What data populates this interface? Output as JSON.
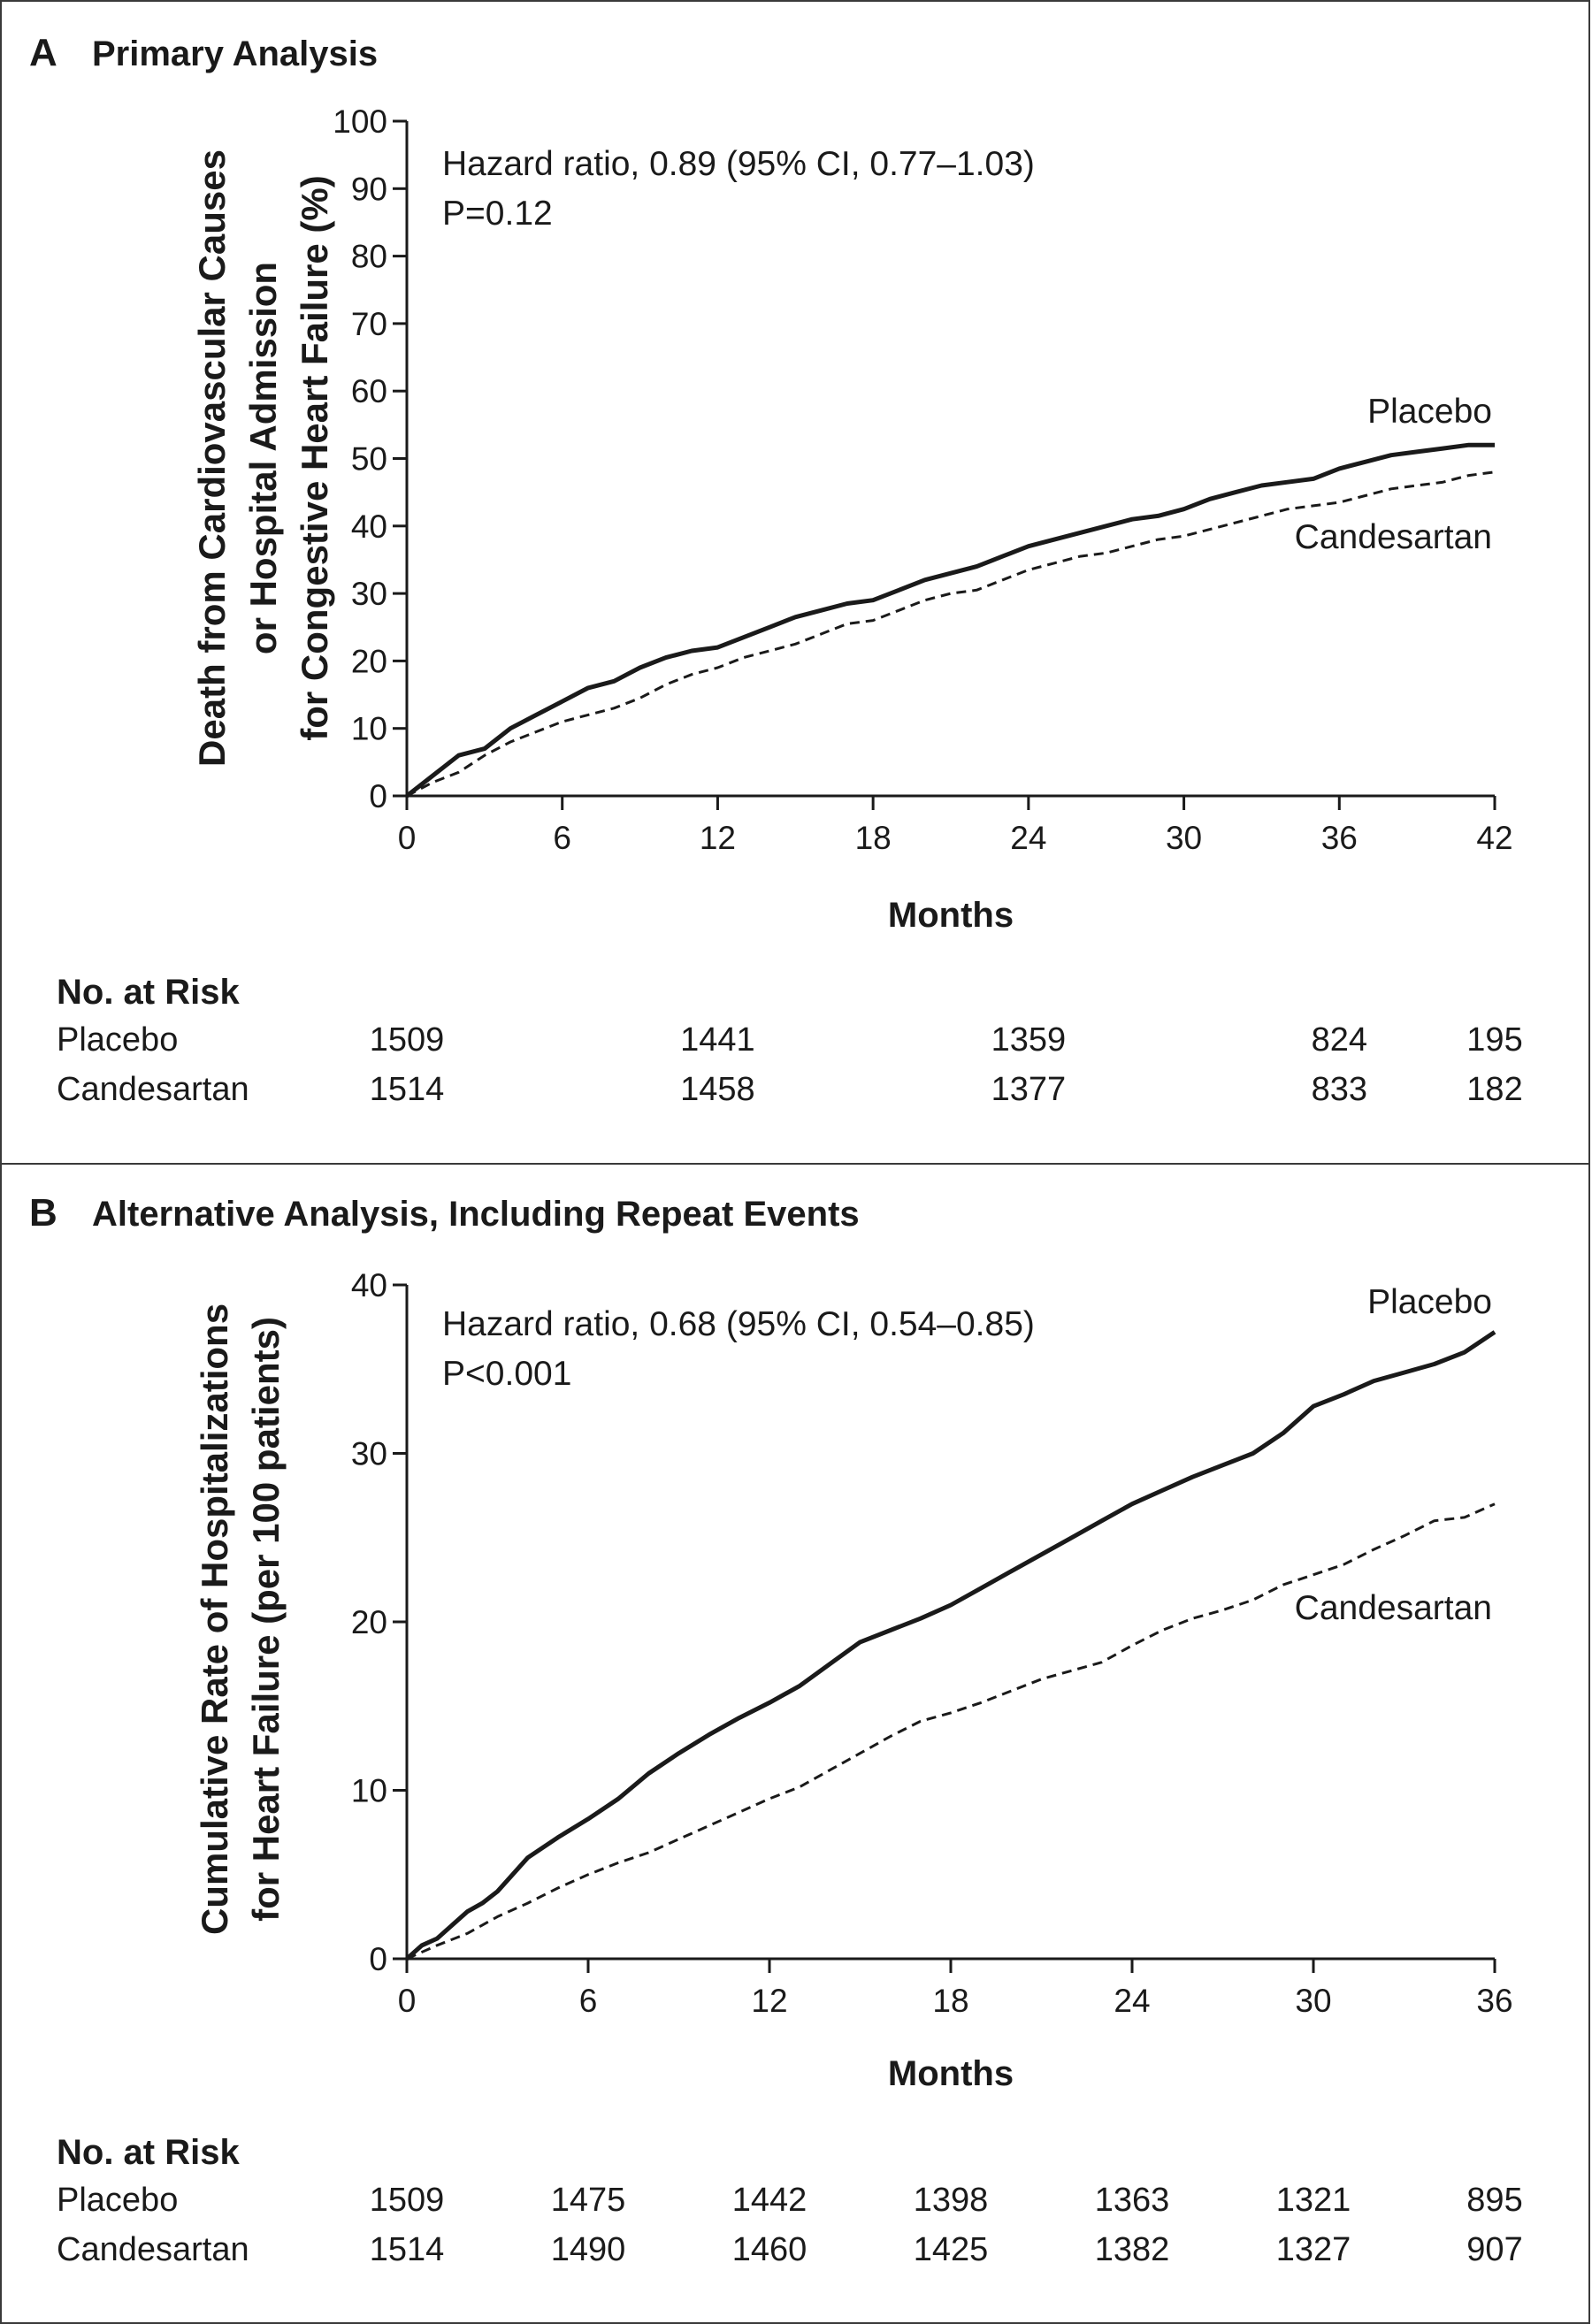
{
  "colors": {
    "line": "#1a1a1a",
    "border": "#3a3a3a"
  },
  "chart_data": [
    {
      "type": "line",
      "panel_letter": "A",
      "title": "Primary Analysis",
      "xlabel": "Months",
      "ylabel_lines": [
        "Death from Cardiovascular Causes",
        "or Hospital Admission",
        "for Congestive Heart Failure (%)"
      ],
      "xlim": [
        0,
        42
      ],
      "ylim": [
        0,
        100
      ],
      "x_ticks": [
        "0",
        "6",
        "12",
        "18",
        "24",
        "30",
        "36",
        "42"
      ],
      "y_ticks": [
        "0",
        "10",
        "20",
        "30",
        "40",
        "50",
        "60",
        "70",
        "80",
        "90",
        "100"
      ],
      "annotation": [
        "Hazard ratio, 0.89 (95% CI, 0.77–1.03)",
        "P=0.12"
      ],
      "series": [
        {
          "name": "Placebo",
          "style": "solid",
          "x": [
            0,
            0.5,
            1,
            1.5,
            2,
            3,
            4,
            5,
            6,
            7,
            8,
            9,
            10,
            11,
            12,
            13,
            14,
            15,
            16,
            17,
            18,
            19,
            20,
            21,
            22,
            23,
            24,
            25,
            26,
            27,
            28,
            29,
            30,
            31,
            32,
            33,
            34,
            35,
            36,
            37,
            38,
            39,
            40,
            41,
            42
          ],
          "y": [
            0,
            1.5,
            3,
            4.5,
            6,
            7,
            10,
            12,
            14,
            16,
            17,
            19,
            20.5,
            21.5,
            22,
            23.5,
            25,
            26.5,
            27.5,
            28.5,
            29,
            30.5,
            32,
            33,
            34,
            35.5,
            37,
            38,
            39,
            40,
            41,
            41.5,
            42.5,
            44,
            45,
            46,
            46.5,
            47,
            48.5,
            49.5,
            50.5,
            51,
            51.5,
            52,
            52
          ]
        },
        {
          "name": "Candesartan",
          "style": "dashed",
          "x": [
            0,
            1,
            2,
            3,
            4,
            5,
            6,
            7,
            8,
            9,
            10,
            11,
            12,
            13,
            14,
            15,
            16,
            17,
            18,
            19,
            20,
            21,
            22,
            23,
            24,
            25,
            26,
            27,
            28,
            29,
            30,
            31,
            32,
            33,
            34,
            35,
            36,
            37,
            38,
            39,
            40,
            41,
            42
          ],
          "y": [
            0,
            2,
            3.5,
            6,
            8,
            9.5,
            11,
            12,
            13,
            14.5,
            16.5,
            18,
            19,
            20.5,
            21.5,
            22.5,
            24,
            25.5,
            26,
            27.5,
            29,
            30,
            30.5,
            32,
            33.5,
            34.5,
            35.5,
            36,
            37,
            38,
            38.5,
            39.5,
            40.5,
            41.5,
            42.5,
            43,
            43.5,
            44.5,
            45.5,
            46,
            46.5,
            47.5,
            48
          ]
        }
      ],
      "risk_table": {
        "heading": "No. at Risk",
        "tick_index": [
          0,
          2,
          4,
          6,
          7
        ],
        "rows": [
          {
            "label": "Placebo",
            "values": [
              "1509",
              "1441",
              "1359",
              "824",
              "195"
            ]
          },
          {
            "label": "Candesartan",
            "values": [
              "1514",
              "1458",
              "1377",
              "833",
              "182"
            ]
          }
        ]
      }
    },
    {
      "type": "line",
      "panel_letter": "B",
      "title": "Alternative Analysis, Including Repeat Events",
      "xlabel": "Months",
      "ylabel_lines": [
        "Cumulative Rate of Hospitalizations",
        "for Heart Failure (per 100 patients)"
      ],
      "xlim": [
        0,
        36
      ],
      "ylim": [
        0,
        40
      ],
      "x_ticks": [
        "0",
        "6",
        "12",
        "18",
        "24",
        "30",
        "36"
      ],
      "y_ticks": [
        "0",
        "10",
        "20",
        "30",
        "40"
      ],
      "annotation": [
        "Hazard ratio, 0.68 (95% CI, 0.54–0.85)",
        "P<0.001"
      ],
      "series": [
        {
          "name": "Placebo",
          "style": "solid",
          "x": [
            0,
            0.5,
            1,
            1.5,
            2,
            2.5,
            3,
            4,
            5,
            6,
            7,
            8,
            9,
            10,
            11,
            12,
            13,
            14,
            15,
            16,
            17,
            18,
            19,
            20,
            21,
            22,
            23,
            24,
            25,
            26,
            27,
            28,
            29,
            30,
            31,
            32,
            33,
            34,
            35,
            36
          ],
          "y": [
            0,
            0.8,
            1.2,
            2,
            2.8,
            3.3,
            4,
            6,
            7.2,
            8.3,
            9.5,
            11,
            12.2,
            13.3,
            14.3,
            15.2,
            16.2,
            17.5,
            18.8,
            19.5,
            20.2,
            21,
            22,
            23,
            24,
            25,
            26,
            27,
            27.8,
            28.6,
            29.3,
            30,
            31.2,
            32.8,
            33.5,
            34.3,
            34.8,
            35.3,
            36,
            37.2
          ]
        },
        {
          "name": "Candesartan",
          "style": "dashed",
          "x": [
            0,
            1,
            2,
            3,
            4,
            5,
            6,
            7,
            8,
            9,
            10,
            11,
            12,
            13,
            14,
            15,
            16,
            17,
            18,
            19,
            20,
            21,
            22,
            23,
            24,
            25,
            26,
            27,
            28,
            29,
            30,
            31,
            32,
            33,
            34,
            35,
            36
          ],
          "y": [
            0,
            0.8,
            1.5,
            2.5,
            3.3,
            4.2,
            5,
            5.7,
            6.3,
            7.1,
            7.9,
            8.7,
            9.5,
            10.2,
            11.2,
            12.2,
            13.2,
            14.1,
            14.6,
            15.2,
            15.9,
            16.6,
            17.1,
            17.6,
            18.6,
            19.5,
            20.2,
            20.7,
            21.3,
            22.2,
            22.8,
            23.4,
            24.3,
            25.1,
            26,
            26.2,
            27
          ]
        }
      ],
      "risk_table": {
        "heading": "No. at Risk",
        "tick_index": [
          0,
          1,
          2,
          3,
          4,
          5,
          6
        ],
        "rows": [
          {
            "label": "Placebo",
            "values": [
              "1509",
              "1475",
              "1442",
              "1398",
              "1363",
              "1321",
              "895"
            ]
          },
          {
            "label": "Candesartan",
            "values": [
              "1514",
              "1490",
              "1460",
              "1425",
              "1382",
              "1327",
              "907"
            ]
          }
        ]
      }
    }
  ]
}
